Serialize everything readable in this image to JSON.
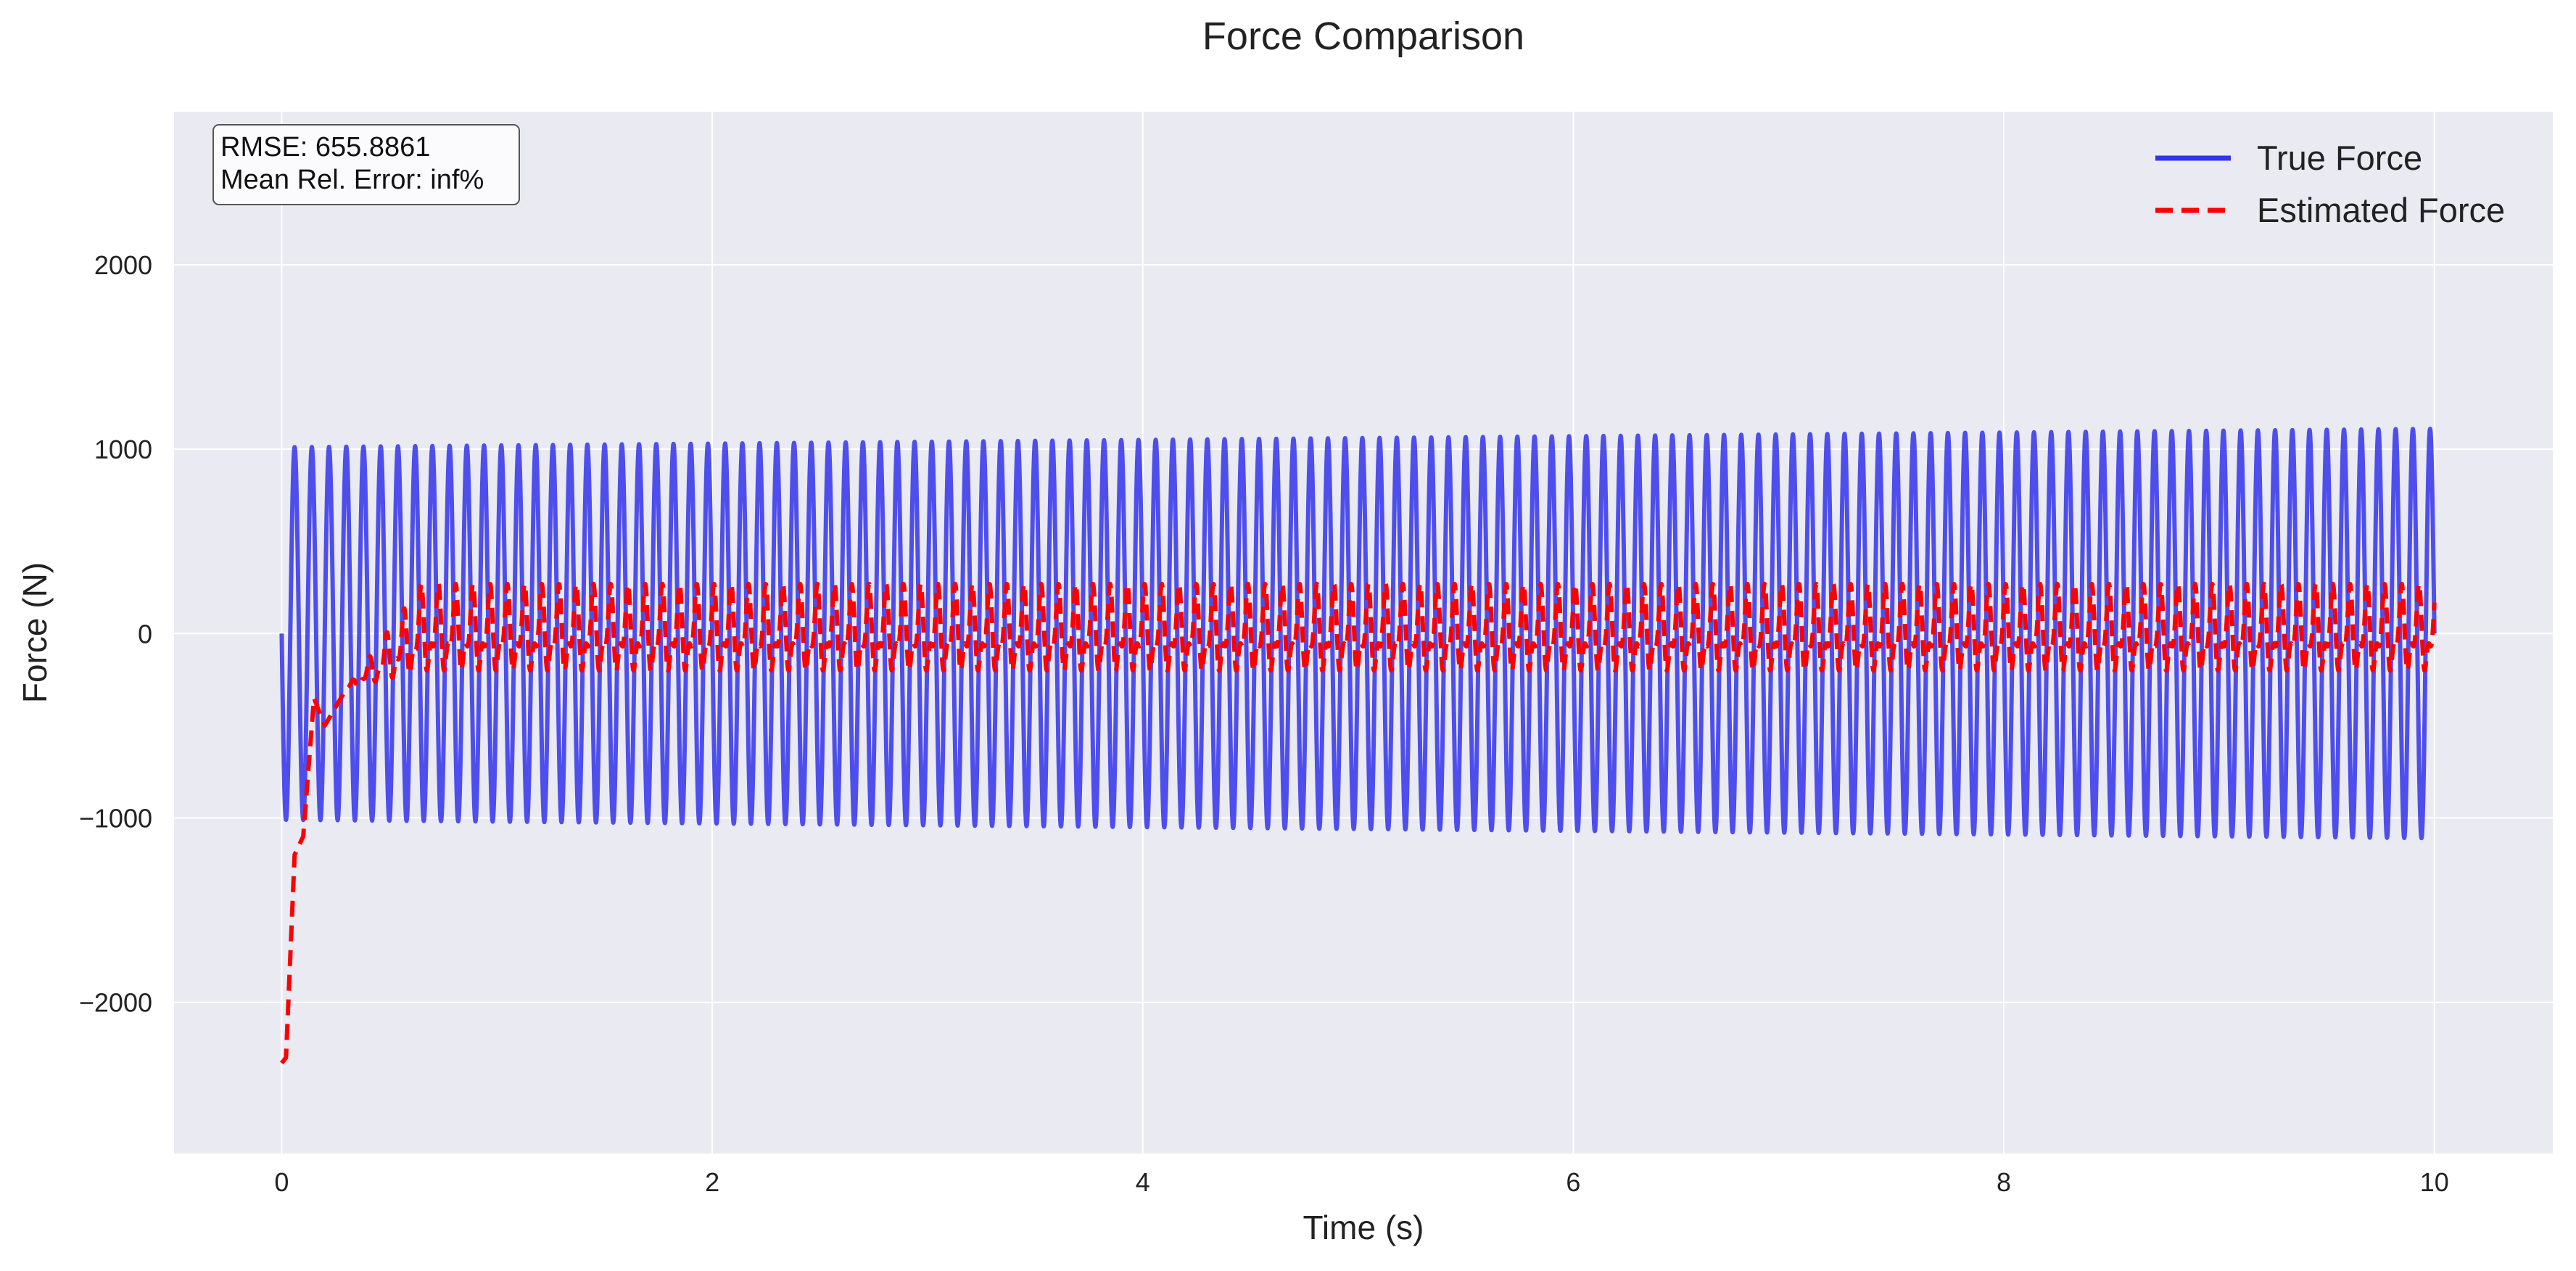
{
  "chart_data": {
    "type": "line",
    "title": "Force Comparison",
    "xlabel": "Time (s)",
    "ylabel": "Force (N)",
    "xlim": [
      -0.5,
      10.55
    ],
    "ylim": [
      -2820,
      2830
    ],
    "xticks": [
      0,
      2,
      4,
      6,
      8,
      10
    ],
    "xtick_labels": [
      "0",
      "2",
      "4",
      "6",
      "8",
      "10"
    ],
    "yticks": [
      -2000,
      -1000,
      0,
      1000,
      2000
    ],
    "ytick_labels": [
      "−2000",
      "−1000",
      "0",
      "1000",
      "2000"
    ],
    "grid": true,
    "legend_position": "top-right",
    "annotation": {
      "position": "top-left",
      "lines": [
        "RMSE: 655.8861",
        "Mean Rel. Error: inf%"
      ]
    },
    "series": [
      {
        "name": "True Force",
        "color": "#3333ee",
        "style": "solid",
        "description": "oscillation, ~12.5 Hz",
        "t_start": 0,
        "t_end": 10,
        "frequency_hz": 12.5,
        "amplitude_start": 1010,
        "amplitude_end": 1110,
        "points": [
          [
            0,
            0
          ],
          [
            0.02,
            -1000
          ],
          [
            0.06,
            1010
          ],
          [
            10,
            1110
          ],
          [
            10.0,
            -150
          ]
        ]
      },
      {
        "name": "Estimated Force",
        "color": "#ff0000",
        "style": "dashed",
        "t_start": 0,
        "t_end": 10,
        "frequency_hz": 12.5,
        "initial_value": -2330,
        "transient_points": [
          [
            0,
            -2330
          ],
          [
            0.02,
            -2300
          ],
          [
            0.06,
            -1200
          ],
          [
            0.1,
            -1100
          ],
          [
            0.15,
            -350
          ],
          [
            0.2,
            -500
          ],
          [
            0.3,
            -300
          ]
        ],
        "steady_amplitude": 240,
        "steady_inner_band": 100
      }
    ]
  }
}
